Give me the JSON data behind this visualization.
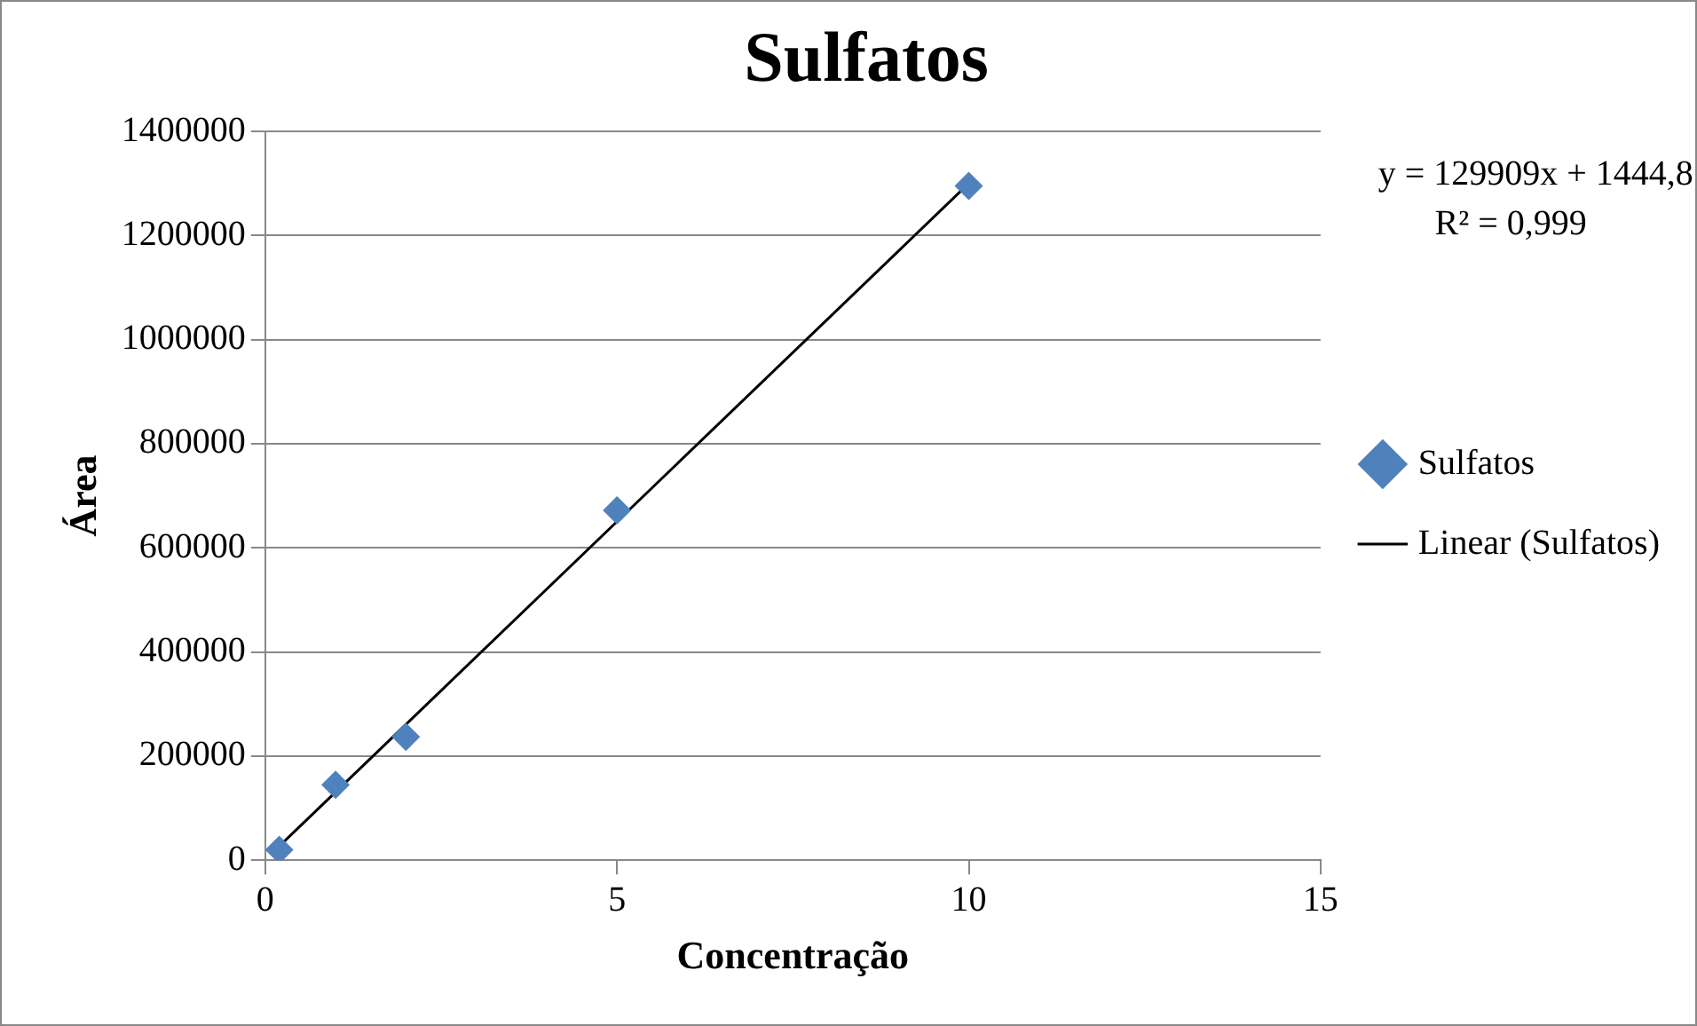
{
  "chart_data": {
    "type": "scatter",
    "title": "Sulfatos",
    "xlabel": "Concentração",
    "ylabel": "Área",
    "series": [
      {
        "name": "Sulfatos",
        "marker": "diamond",
        "color": "#4f81bd",
        "x": [
          0.2,
          1,
          2,
          5,
          10
        ],
        "values": [
          20000,
          145000,
          237000,
          672000,
          1295000
        ]
      },
      {
        "name": "Linear (Sulfatos)",
        "type": "line",
        "marker": "none",
        "color": "#000000",
        "x": [
          0.2,
          10
        ],
        "values": [
          27000,
          1300000
        ]
      }
    ],
    "annotations": [
      "y = 129909x + 1444,8",
      "R² = 0,999"
    ],
    "xlim": [
      0,
      15
    ],
    "xticks": [
      0,
      5,
      10,
      15
    ],
    "ylim": [
      0,
      1400000
    ],
    "yticks": [
      0,
      200000,
      400000,
      600000,
      800000,
      1000000,
      1200000,
      1400000
    ],
    "grid": "y",
    "legend": "right"
  }
}
